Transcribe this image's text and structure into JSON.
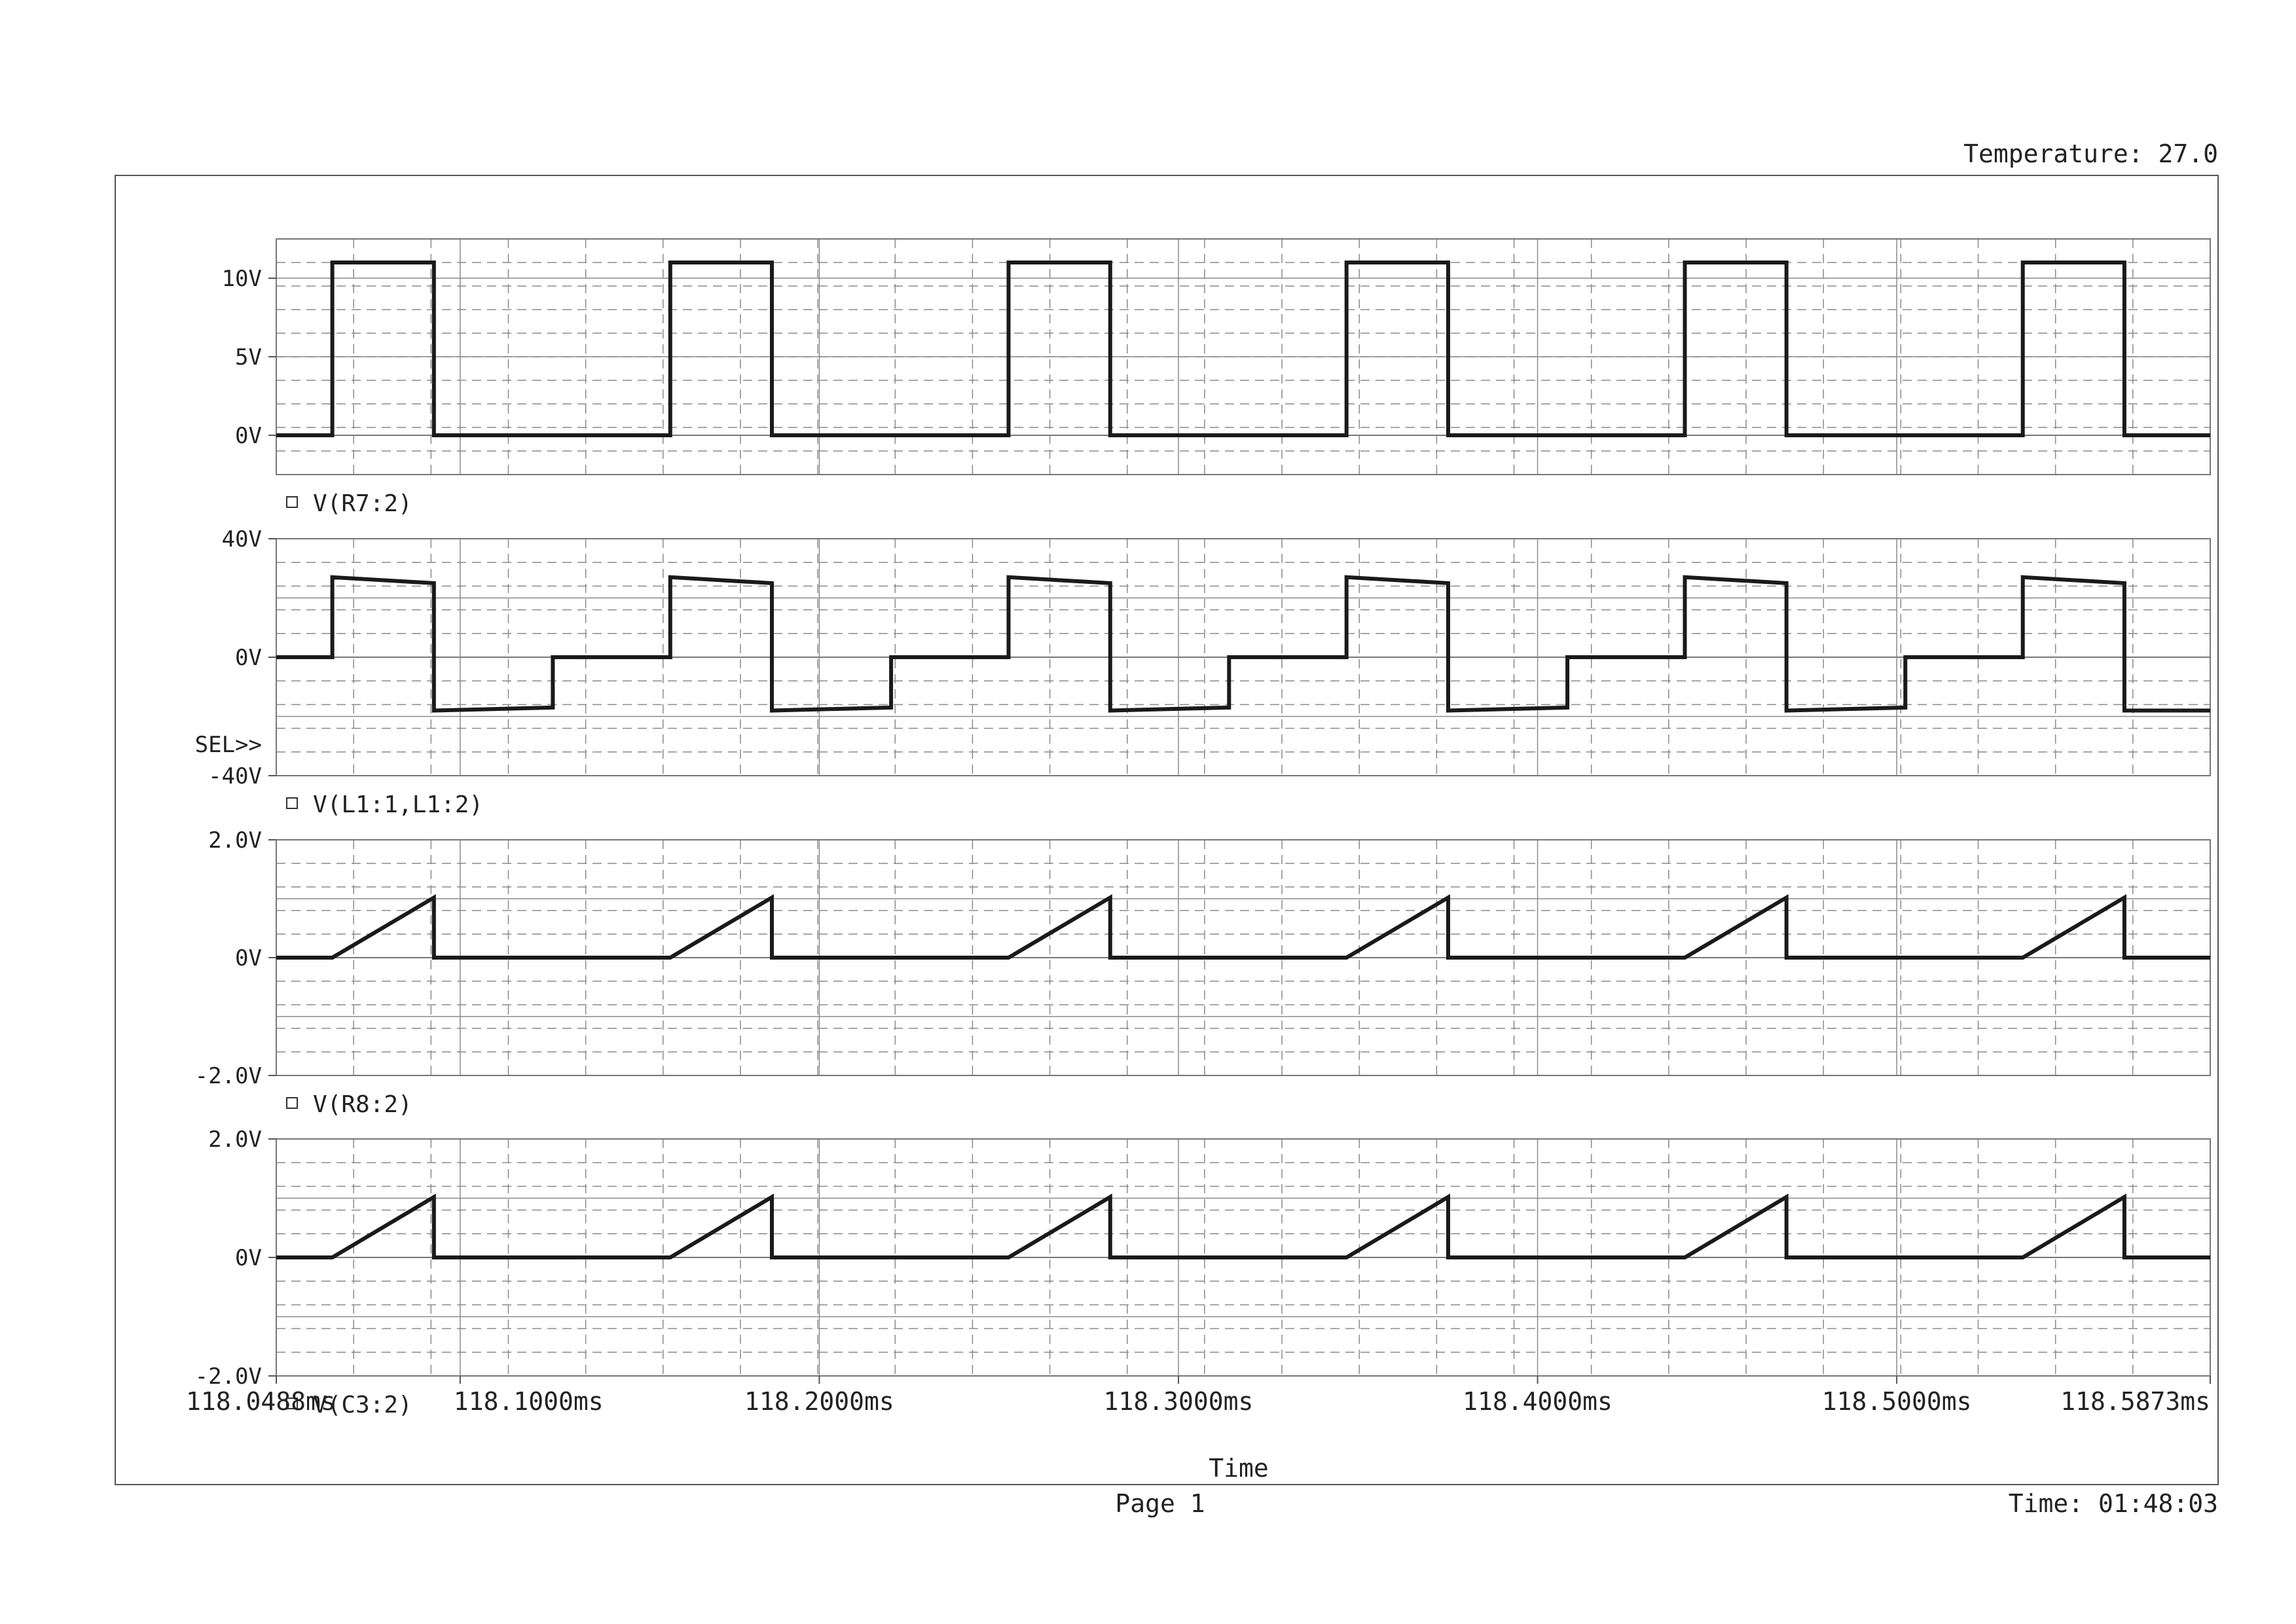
{
  "header": {
    "temperature_label": "Temperature: 27.0"
  },
  "footer": {
    "page_label": "Page 1",
    "time_label": "Time: 01:48:03"
  },
  "colors": {
    "trace": "#1a1a1a",
    "grid": "#8a8a8a",
    "background": "#ffffff"
  },
  "chart_data": [
    {
      "type": "line",
      "trace_label": "V(R7:2)",
      "ylim": [
        -2.5,
        12.5
      ],
      "y_ticks": [
        {
          "value": 0,
          "label": "0V"
        },
        {
          "value": 5,
          "label": "5V"
        },
        {
          "value": 10,
          "label": "10V"
        }
      ],
      "y_major_lines": [
        0,
        5,
        10
      ],
      "selected": false,
      "points": [
        [
          118.0488,
          0
        ],
        [
          118.0644,
          0
        ],
        [
          118.0644,
          11
        ],
        [
          118.0927,
          11
        ],
        [
          118.0927,
          0
        ],
        [
          118.15,
          0
        ],
        [
          118.1585,
          0
        ],
        [
          118.1585,
          11
        ],
        [
          118.1868,
          11
        ],
        [
          118.1868,
          0
        ],
        [
          118.2441,
          0
        ],
        [
          118.2527,
          0
        ],
        [
          118.2527,
          11
        ],
        [
          118.281,
          11
        ],
        [
          118.281,
          0
        ],
        [
          118.3382,
          0
        ],
        [
          118.3468,
          0
        ],
        [
          118.3468,
          11
        ],
        [
          118.3751,
          11
        ],
        [
          118.3751,
          0
        ],
        [
          118.4324,
          0
        ],
        [
          118.441,
          0
        ],
        [
          118.441,
          11
        ],
        [
          118.4693,
          11
        ],
        [
          118.4693,
          0
        ],
        [
          118.5265,
          0
        ],
        [
          118.5351,
          0
        ],
        [
          118.5351,
          11
        ],
        [
          118.5634,
          11
        ],
        [
          118.5634,
          0
        ],
        [
          118.5873,
          0
        ]
      ]
    },
    {
      "type": "line",
      "trace_label": "V(L1:1,L1:2)",
      "ylim": [
        -40,
        40
      ],
      "y_ticks": [
        {
          "value": -40,
          "label": "-40V"
        },
        {
          "value": 0,
          "label": "0V"
        },
        {
          "value": 40,
          "label": "40V"
        }
      ],
      "y_major_lines": [
        -20,
        0,
        20
      ],
      "selected": true,
      "selected_marker": "SEL>>",
      "points": [
        [
          118.0488,
          0
        ],
        [
          118.0644,
          0
        ],
        [
          118.0644,
          27
        ],
        [
          118.0927,
          25
        ],
        [
          118.0927,
          -18
        ],
        [
          118.1258,
          -17
        ],
        [
          118.1258,
          0
        ],
        [
          118.1585,
          0
        ],
        [
          118.1585,
          27
        ],
        [
          118.1868,
          25
        ],
        [
          118.1868,
          -18
        ],
        [
          118.22,
          -17
        ],
        [
          118.22,
          0
        ],
        [
          118.2527,
          0
        ],
        [
          118.2527,
          27
        ],
        [
          118.281,
          25
        ],
        [
          118.281,
          -18
        ],
        [
          118.3141,
          -17
        ],
        [
          118.3141,
          0
        ],
        [
          118.3468,
          0
        ],
        [
          118.3468,
          27
        ],
        [
          118.3751,
          25
        ],
        [
          118.3751,
          -18
        ],
        [
          118.4083,
          -17
        ],
        [
          118.4083,
          0
        ],
        [
          118.441,
          0
        ],
        [
          118.441,
          27
        ],
        [
          118.4693,
          25
        ],
        [
          118.4693,
          -18
        ],
        [
          118.5024,
          -17
        ],
        [
          118.5024,
          0
        ],
        [
          118.5351,
          0
        ],
        [
          118.5351,
          27
        ],
        [
          118.5634,
          25
        ],
        [
          118.5634,
          -18
        ],
        [
          118.5873,
          -18
        ]
      ]
    },
    {
      "type": "line",
      "trace_label": "V(R8:2)",
      "ylim": [
        -2.0,
        2.0
      ],
      "y_ticks": [
        {
          "value": -2,
          "label": "-2.0V"
        },
        {
          "value": 0,
          "label": "0V"
        },
        {
          "value": 2,
          "label": "2.0V"
        }
      ],
      "y_major_lines": [
        -1,
        0,
        1
      ],
      "selected": false,
      "points": [
        [
          118.0488,
          0
        ],
        [
          118.0644,
          0
        ],
        [
          118.0927,
          1.02
        ],
        [
          118.0927,
          0
        ],
        [
          118.1585,
          0
        ],
        [
          118.1868,
          1.02
        ],
        [
          118.1868,
          0
        ],
        [
          118.2527,
          0
        ],
        [
          118.281,
          1.02
        ],
        [
          118.281,
          0
        ],
        [
          118.3468,
          0
        ],
        [
          118.3751,
          1.02
        ],
        [
          118.3751,
          0
        ],
        [
          118.441,
          0
        ],
        [
          118.4693,
          1.02
        ],
        [
          118.4693,
          0
        ],
        [
          118.5351,
          0
        ],
        [
          118.5634,
          1.02
        ],
        [
          118.5634,
          0
        ],
        [
          118.5873,
          0
        ]
      ]
    },
    {
      "type": "line",
      "trace_label": "V(C3:2)",
      "ylim": [
        -2.0,
        2.0
      ],
      "y_ticks": [
        {
          "value": -2,
          "label": "-2.0V"
        },
        {
          "value": 0,
          "label": "0V"
        },
        {
          "value": 2,
          "label": "2.0V"
        }
      ],
      "y_major_lines": [
        -1,
        0,
        1
      ],
      "selected": false,
      "points": [
        [
          118.0488,
          0
        ],
        [
          118.0644,
          0
        ],
        [
          118.0927,
          1.02
        ],
        [
          118.0927,
          0
        ],
        [
          118.1585,
          0
        ],
        [
          118.1868,
          1.02
        ],
        [
          118.1868,
          0
        ],
        [
          118.2527,
          0
        ],
        [
          118.281,
          1.02
        ],
        [
          118.281,
          0
        ],
        [
          118.3468,
          0
        ],
        [
          118.3751,
          1.02
        ],
        [
          118.3751,
          0
        ],
        [
          118.441,
          0
        ],
        [
          118.4693,
          1.02
        ],
        [
          118.4693,
          0
        ],
        [
          118.5351,
          0
        ],
        [
          118.5634,
          1.02
        ],
        [
          118.5634,
          0
        ],
        [
          118.5873,
          0
        ]
      ]
    }
  ],
  "x_axis": {
    "title": "Time",
    "xlim": [
      118.0488,
      118.5873
    ],
    "major_lines": [
      118.1,
      118.2,
      118.3,
      118.4,
      118.5
    ],
    "ticks": [
      {
        "value": 118.0488,
        "label": "118.0488ms"
      },
      {
        "value": 118.1,
        "label": "118.1000ms"
      },
      {
        "value": 118.2,
        "label": "118.2000ms"
      },
      {
        "value": 118.3,
        "label": "118.3000ms"
      },
      {
        "value": 118.4,
        "label": "118.4000ms"
      },
      {
        "value": 118.5,
        "label": "118.5000ms"
      },
      {
        "value": 118.5873,
        "label": "118.5873ms"
      }
    ]
  }
}
